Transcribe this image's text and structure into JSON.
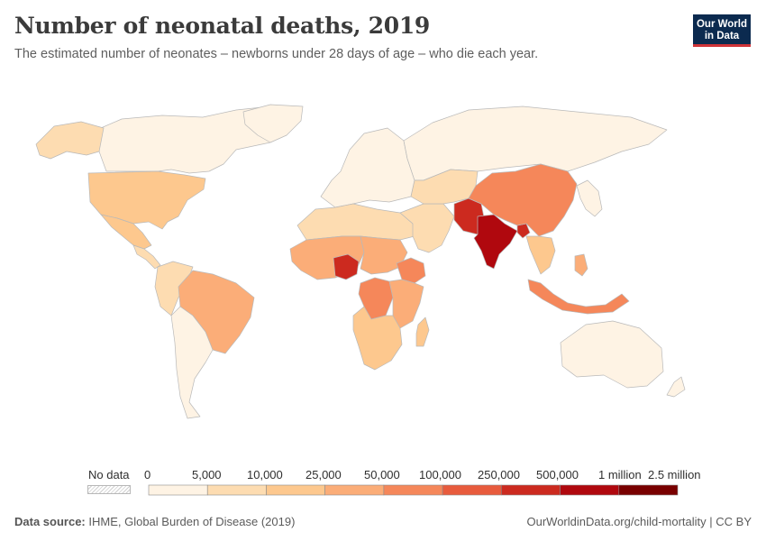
{
  "header": {
    "title": "Number of neonatal deaths, 2019",
    "subtitle": "The estimated number of neonates – newborns under 28 days of age – who die each year."
  },
  "logo": {
    "line1": "Our World",
    "line2": "in Data"
  },
  "legend": {
    "no_data_label": "No data",
    "bins": [
      {
        "from": "0",
        "to": "5,000",
        "color": "#fef3e4"
      },
      {
        "from": "5,000",
        "to": "10,000",
        "color": "#fddcb1"
      },
      {
        "from": "10,000",
        "to": "25,000",
        "color": "#fdc88e"
      },
      {
        "from": "25,000",
        "to": "50,000",
        "color": "#fbad78"
      },
      {
        "from": "50,000",
        "to": "100,000",
        "color": "#f5875a"
      },
      {
        "from": "100,000",
        "to": "250,000",
        "color": "#e85b3d"
      },
      {
        "from": "250,000",
        "to": "500,000",
        "color": "#cc2a1f"
      },
      {
        "from": "500,000",
        "to": "1 million",
        "color": "#b0080e"
      },
      {
        "from": "1 million",
        "to": "2.5 million",
        "color": "#790000"
      }
    ]
  },
  "map": {
    "ocean_color": "#ffffff",
    "border_color": "#b9b9b9",
    "regions": [
      {
        "id": "north-america",
        "bin": 0
      },
      {
        "id": "alaska",
        "bin": 1
      },
      {
        "id": "united-states",
        "bin": 2
      },
      {
        "id": "mexico",
        "bin": 2
      },
      {
        "id": "central-america",
        "bin": 1
      },
      {
        "id": "colombia-venezuela",
        "bin": 1
      },
      {
        "id": "brazil",
        "bin": 3
      },
      {
        "id": "southern-cone",
        "bin": 0
      },
      {
        "id": "greenland",
        "bin": 0
      },
      {
        "id": "europe",
        "bin": 0
      },
      {
        "id": "russia",
        "bin": 0
      },
      {
        "id": "north-africa",
        "bin": 1
      },
      {
        "id": "sahel-west",
        "bin": 3
      },
      {
        "id": "nigeria",
        "bin": 6
      },
      {
        "id": "sudan-chad",
        "bin": 3
      },
      {
        "id": "ethiopia",
        "bin": 4
      },
      {
        "id": "drc",
        "bin": 4
      },
      {
        "id": "east-africa",
        "bin": 3
      },
      {
        "id": "southern-africa",
        "bin": 2
      },
      {
        "id": "madagascar",
        "bin": 2
      },
      {
        "id": "middle-east",
        "bin": 1
      },
      {
        "id": "central-asia",
        "bin": 1
      },
      {
        "id": "pakistan",
        "bin": 6
      },
      {
        "id": "india",
        "bin": 7
      },
      {
        "id": "bangladesh",
        "bin": 6
      },
      {
        "id": "china",
        "bin": 4
      },
      {
        "id": "southeast-asia",
        "bin": 2
      },
      {
        "id": "indonesia",
        "bin": 4
      },
      {
        "id": "philippines",
        "bin": 3
      },
      {
        "id": "japan-korea",
        "bin": 0
      },
      {
        "id": "australia",
        "bin": 0
      },
      {
        "id": "new-zealand",
        "bin": 0
      }
    ]
  },
  "footer": {
    "source_label": "Data source:",
    "source_text": "IHME, Global Burden of Disease (2019)",
    "url": "OurWorldinData.org/child-mortality | CC BY"
  }
}
